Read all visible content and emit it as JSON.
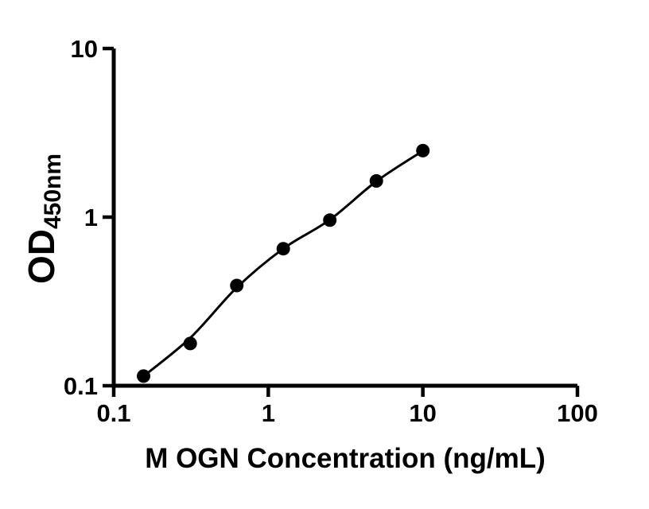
{
  "figure": {
    "background_color": "#ffffff",
    "ink_color": "#000000"
  },
  "chart_data": {
    "type": "scatter",
    "title": "",
    "xlabel": "M OGN Concentration (ng/mL)",
    "ylabel": "OD",
    "ylabel_subscript": "450nm",
    "x_scale": "log10",
    "y_scale": "log10",
    "xlim": [
      0.1,
      100
    ],
    "ylim": [
      0.1,
      10
    ],
    "x_ticks": [
      0.1,
      1,
      10,
      100
    ],
    "x_tick_labels": [
      "0.1",
      "1",
      "10",
      "100"
    ],
    "y_ticks": [
      0.1,
      1,
      10
    ],
    "y_tick_labels": [
      "0.1",
      "1",
      "10"
    ],
    "grid": false,
    "legend": null,
    "series": [
      {
        "name": "standard-curve-points",
        "marker": "filled-circle",
        "color": "#000000",
        "x": [
          0.156,
          0.3125,
          0.625,
          1.25,
          2.5,
          5,
          10
        ],
        "y": [
          0.114,
          0.178,
          0.393,
          0.65,
          0.96,
          1.64,
          2.48
        ]
      }
    ],
    "fit_curve": {
      "name": "standard-curve-fit-line",
      "color": "#000000",
      "x": [
        0.156,
        0.3125,
        0.625,
        1.25,
        2.5,
        5,
        10
      ],
      "y": [
        0.114,
        0.192,
        0.382,
        0.65,
        0.965,
        1.63,
        2.47
      ]
    }
  }
}
